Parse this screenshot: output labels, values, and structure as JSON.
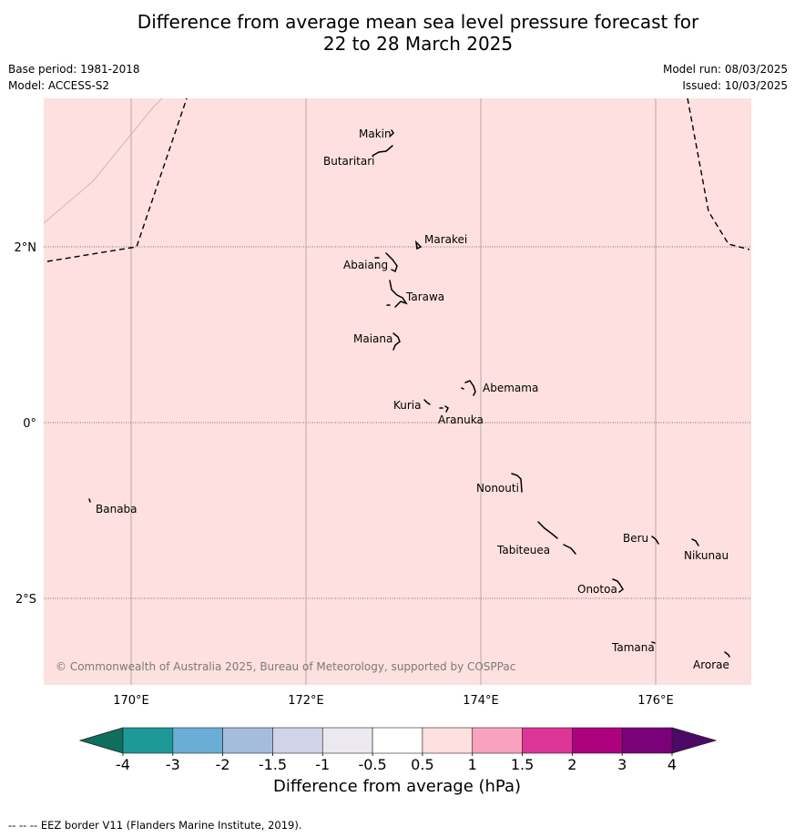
{
  "title": {
    "line1": "Difference from average mean sea level pressure forecast for",
    "line2": "22 to 28 March 2025"
  },
  "meta": {
    "base_period": "Base period: 1981-2018",
    "model": "Model: ACCESS-S2",
    "model_run": "Model run: 08/03/2025",
    "issued": "Issued: 10/03/2025"
  },
  "map": {
    "region": "Kiribati (Gilbert Islands)",
    "lon_range": [
      169,
      177.1
    ],
    "lat_range": [
      -2.9,
      3.8
    ],
    "fill_category": "0.5 to 1",
    "fill_color": "#fde0df",
    "lon_ticks": [
      {
        "lon": 170,
        "label": "170°E"
      },
      {
        "lon": 172,
        "label": "172°E"
      },
      {
        "lon": 174,
        "label": "174°E"
      },
      {
        "lon": 176,
        "label": "176°E"
      }
    ],
    "lat_ticks": [
      {
        "lat": 2,
        "label": "2°N"
      },
      {
        "lat": 0,
        "label": "0°"
      },
      {
        "lat": -2,
        "label": "2°S"
      }
    ],
    "islands": [
      {
        "name": "Makin",
        "lon": 172.98,
        "lat": 3.35
      },
      {
        "name": "Butaritari",
        "lon": 172.85,
        "lat": 3.1
      },
      {
        "name": "Marakei",
        "lon": 173.32,
        "lat": 2.0
      },
      {
        "name": "Abaiang",
        "lon": 173.0,
        "lat": 1.8
      },
      {
        "name": "Tarawa",
        "lon": 173.1,
        "lat": 1.45
      },
      {
        "name": "Maiana",
        "lon": 173.0,
        "lat": 0.95
      },
      {
        "name": "Abemama",
        "lon": 173.85,
        "lat": 0.4
      },
      {
        "name": "Kuria",
        "lon": 173.4,
        "lat": 0.23
      },
      {
        "name": "Aranuka",
        "lon": 173.6,
        "lat": 0.15
      },
      {
        "name": "Banaba",
        "lon": 169.55,
        "lat": -0.88
      },
      {
        "name": "Nonouti",
        "lon": 174.4,
        "lat": -0.7
      },
      {
        "name": "Tabiteuea",
        "lon": 174.9,
        "lat": -1.35
      },
      {
        "name": "Beru",
        "lon": 176.0,
        "lat": -1.33
      },
      {
        "name": "Nikunau",
        "lon": 176.45,
        "lat": -1.35
      },
      {
        "name": "Onotoa",
        "lon": 175.57,
        "lat": -1.85
      },
      {
        "name": "Tamana",
        "lon": 175.98,
        "lat": -2.5
      },
      {
        "name": "Arorae",
        "lon": 176.8,
        "lat": -2.65
      }
    ],
    "copyright": "© Commonwealth of Australia 2025, Bureau of Meteorology, supported by COSPPac"
  },
  "colorbar": {
    "label": "Difference from average (hPa)",
    "tick_labels": [
      "-4",
      "-3",
      "-2",
      "-1.5",
      "-1",
      "-0.5",
      "0.5",
      "1",
      "1.5",
      "2",
      "3",
      "4"
    ],
    "low_extend_color": "#0f6e5d",
    "high_extend_color": "#4c0a66",
    "colors": [
      "#1f9898",
      "#6aaed6",
      "#a6bcdb",
      "#d1d3e8",
      "#ebe8ef",
      "#ffffff",
      "#fde0df",
      "#f9a2bf",
      "#dd3597",
      "#ae017e",
      "#7a0177"
    ]
  },
  "footnote": "-- -- -- EEZ border V11 (Flanders Marine Institute, 2019)."
}
